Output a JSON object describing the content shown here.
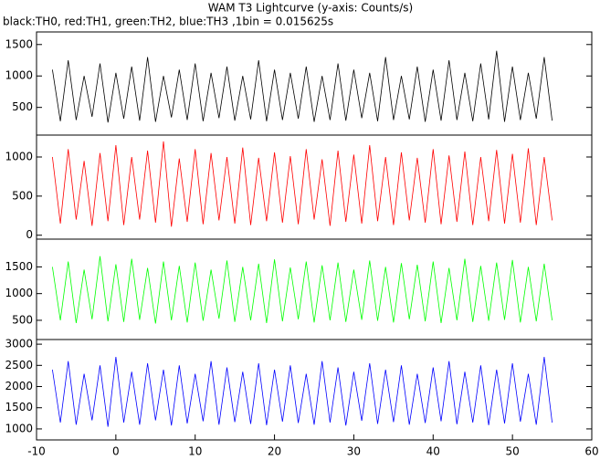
{
  "title": "WAM T3 Lightcurve (y-axis: Counts/s)",
  "subtitle": "black:TH0, red:TH1, green:TH2, blue:TH3 ,1bin = 0.015625s",
  "chart_data": [
    {
      "type": "line",
      "color": "#000000",
      "xlim": [
        -10,
        60
      ],
      "ylim": [
        60,
        1700
      ],
      "yticks": [
        500,
        1000,
        1500
      ],
      "x": [
        -8,
        -7,
        -6,
        -5,
        -4,
        -3,
        -2,
        -1,
        0,
        1,
        2,
        3,
        4,
        5,
        6,
        7,
        8,
        9,
        10,
        11,
        12,
        13,
        14,
        15,
        16,
        17,
        18,
        19,
        20,
        21,
        22,
        23,
        24,
        25,
        26,
        27,
        28,
        29,
        30,
        31,
        32,
        33,
        34,
        35,
        36,
        37,
        38,
        39,
        40,
        41,
        42,
        43,
        44,
        45,
        46,
        47,
        48,
        49,
        50,
        51,
        52,
        53,
        54,
        55
      ],
      "values": [
        1100,
        280,
        1250,
        300,
        1000,
        350,
        1200,
        260,
        1050,
        320,
        1150,
        290,
        1300,
        270,
        1000,
        340,
        1100,
        300,
        1200,
        280,
        1050,
        330,
        1150,
        290,
        1000,
        310,
        1250,
        280,
        1100,
        300,
        1050,
        320,
        1150,
        270,
        1000,
        300,
        1200,
        290,
        1100,
        330,
        1050,
        280,
        1300,
        300,
        1000,
        310,
        1150,
        270,
        1100,
        290,
        1250,
        300,
        1050,
        280,
        1200,
        310,
        1400,
        270,
        1150,
        300,
        1050,
        320,
        1300,
        290
      ]
    },
    {
      "type": "line",
      "color": "#ff0000",
      "xlim": [
        -10,
        60
      ],
      "ylim": [
        -50,
        1280
      ],
      "yticks": [
        0,
        500,
        1000
      ],
      "x": [
        -8,
        -7,
        -6,
        -5,
        -4,
        -3,
        -2,
        -1,
        0,
        1,
        2,
        3,
        4,
        5,
        6,
        7,
        8,
        9,
        10,
        11,
        12,
        13,
        14,
        15,
        16,
        17,
        18,
        19,
        20,
        21,
        22,
        23,
        24,
        25,
        26,
        27,
        28,
        29,
        30,
        31,
        32,
        33,
        34,
        35,
        36,
        37,
        38,
        39,
        40,
        41,
        42,
        43,
        44,
        45,
        46,
        47,
        48,
        49,
        50,
        51,
        52,
        53,
        54,
        55
      ],
      "values": [
        1000,
        150,
        1100,
        200,
        950,
        120,
        1050,
        180,
        1150,
        130,
        1000,
        200,
        1080,
        160,
        1200,
        110,
        980,
        170,
        1100,
        140,
        1050,
        190,
        1000,
        150,
        1120,
        130,
        990,
        180,
        1060,
        160,
        1010,
        140,
        1100,
        200,
        970,
        120,
        1080,
        170,
        1030,
        150,
        1150,
        180,
        1000,
        130,
        1060,
        190,
        990,
        160,
        1100,
        140,
        1020,
        170,
        1070,
        130,
        1000,
        180,
        1090,
        150,
        1040,
        160,
        1110,
        130,
        1000,
        190
      ]
    },
    {
      "type": "line",
      "color": "#00ff00",
      "xlim": [
        -10,
        60
      ],
      "ylim": [
        140,
        2020
      ],
      "yticks": [
        500,
        1000,
        1500
      ],
      "x": [
        -8,
        -7,
        -6,
        -5,
        -4,
        -3,
        -2,
        -1,
        0,
        1,
        2,
        3,
        4,
        5,
        6,
        7,
        8,
        9,
        10,
        11,
        12,
        13,
        14,
        15,
        16,
        17,
        18,
        19,
        20,
        21,
        22,
        23,
        24,
        25,
        26,
        27,
        28,
        29,
        30,
        31,
        32,
        33,
        34,
        35,
        36,
        37,
        38,
        39,
        40,
        41,
        42,
        43,
        44,
        45,
        46,
        47,
        48,
        49,
        50,
        51,
        52,
        53,
        54,
        55
      ],
      "values": [
        1500,
        500,
        1600,
        450,
        1450,
        520,
        1700,
        480,
        1550,
        470,
        1650,
        510,
        1480,
        440,
        1600,
        500,
        1520,
        460,
        1580,
        490,
        1450,
        530,
        1620,
        470,
        1500,
        500,
        1560,
        450,
        1640,
        480,
        1490,
        520,
        1600,
        460,
        1530,
        500,
        1580,
        470,
        1450,
        510,
        1620,
        490,
        1500,
        460,
        1570,
        520,
        1540,
        480,
        1600,
        450,
        1480,
        500,
        1650,
        470,
        1520,
        490,
        1580,
        510,
        1630,
        460,
        1500,
        480,
        1560,
        500
      ]
    },
    {
      "type": "line",
      "color": "#0000ff",
      "xlim": [
        -10,
        60
      ],
      "ylim": [
        740,
        3110
      ],
      "yticks": [
        1000,
        1500,
        2000,
        2500,
        3000
      ],
      "xticks": [
        -10,
        0,
        10,
        20,
        30,
        40,
        50,
        60
      ],
      "x": [
        -8,
        -7,
        -6,
        -5,
        -4,
        -3,
        -2,
        -1,
        0,
        1,
        2,
        3,
        4,
        5,
        6,
        7,
        8,
        9,
        10,
        11,
        12,
        13,
        14,
        15,
        16,
        17,
        18,
        19,
        20,
        21,
        22,
        23,
        24,
        25,
        26,
        27,
        28,
        29,
        30,
        31,
        32,
        33,
        34,
        35,
        36,
        37,
        38,
        39,
        40,
        41,
        42,
        43,
        44,
        45,
        46,
        47,
        48,
        49,
        50,
        51,
        52,
        53,
        54,
        55
      ],
      "values": [
        2400,
        1150,
        2600,
        1100,
        2300,
        1200,
        2500,
        1050,
        2700,
        1150,
        2350,
        1100,
        2550,
        1200,
        2400,
        1080,
        2500,
        1130,
        2300,
        1180,
        2600,
        1100,
        2450,
        1160,
        2350,
        1120,
        2550,
        1090,
        2400,
        1170,
        2500,
        1140,
        2300,
        1100,
        2600,
        1150,
        2450,
        1080,
        2350,
        1190,
        2550,
        1120,
        2400,
        1160,
        2500,
        1100,
        2300,
        1140,
        2450,
        1180,
        2600,
        1110,
        2350,
        1150,
        2500,
        1090,
        2400,
        1130,
        2550,
        1170,
        2300,
        1100,
        2700,
        1150
      ]
    }
  ]
}
